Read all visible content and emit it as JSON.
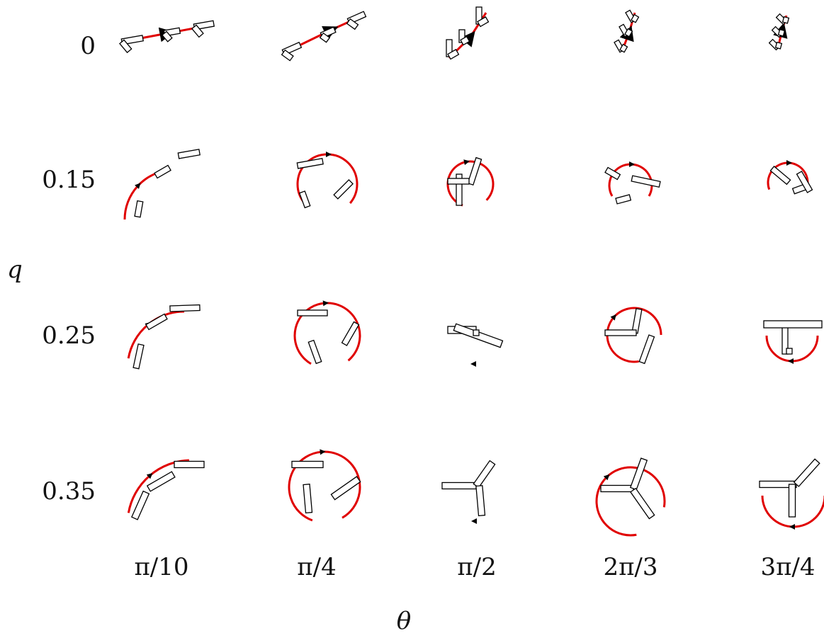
{
  "axis": {
    "y_label": "q",
    "x_label": "θ"
  },
  "rows": [
    "0",
    "0.15",
    "0.25",
    "0.35"
  ],
  "cols": [
    "π/10",
    "π/4",
    "π/2",
    "2π/3",
    "3π/4"
  ],
  "colors": {
    "trajectory": "#e00000",
    "segment_stroke": "#000000",
    "segment_fill": "#ffffff",
    "arrow": "#000000"
  }
}
